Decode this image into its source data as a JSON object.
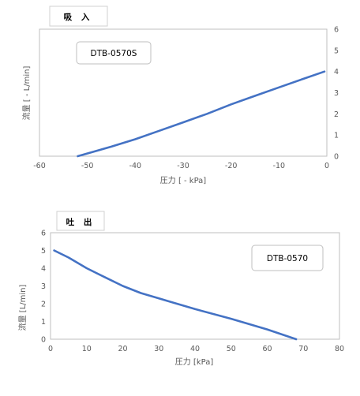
{
  "chart_data": [
    {
      "type": "line",
      "title": "吸 入",
      "legend_box": "DTB-0570S",
      "xlabel": "圧力 [ - kPa]",
      "ylabel": "流量 [ - L/min]",
      "xlim": [
        -60,
        0
      ],
      "ylim": [
        0,
        6
      ],
      "x_ticks": [
        "-60",
        "-50",
        "-40",
        "-30",
        "-20",
        "-10",
        "0"
      ],
      "y_ticks": [
        "0",
        "1",
        "2",
        "3",
        "4",
        "5",
        "6"
      ],
      "y_axis_side": "right",
      "grid": "none",
      "series": [
        {
          "color": "#4472c4",
          "x": [
            -52,
            -45,
            -40,
            -35,
            -30,
            -25,
            -20,
            -15,
            -10,
            -5,
            -0.5
          ],
          "y": [
            0,
            0.45,
            0.8,
            1.2,
            1.6,
            2.0,
            2.45,
            2.85,
            3.25,
            3.65,
            4.0
          ]
        }
      ]
    },
    {
      "type": "line",
      "title": "吐 出",
      "legend_box": "DTB-0570",
      "xlabel": "圧力 [kPa]",
      "ylabel": "流量 [L/min]",
      "xlim": [
        0,
        80
      ],
      "ylim": [
        0,
        6
      ],
      "x_ticks": [
        "0",
        "10",
        "20",
        "30",
        "40",
        "50",
        "60",
        "70",
        "80"
      ],
      "y_ticks": [
        "0",
        "1",
        "2",
        "3",
        "4",
        "5",
        "6"
      ],
      "y_axis_side": "left",
      "grid": "none",
      "series": [
        {
          "color": "#4472c4",
          "x": [
            1,
            5,
            10,
            15,
            20,
            25,
            30,
            40,
            50,
            60,
            68
          ],
          "y": [
            5.0,
            4.6,
            4.0,
            3.5,
            3.0,
            2.6,
            2.3,
            1.7,
            1.15,
            0.55,
            0
          ]
        }
      ]
    }
  ]
}
